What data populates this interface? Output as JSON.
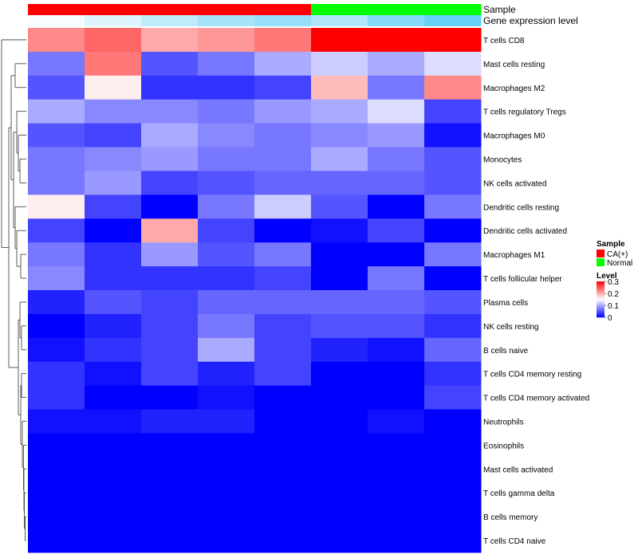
{
  "chart_data": {
    "type": "heatmap",
    "annotation_rows": [
      {
        "name": "Sample",
        "values": [
          "CA(+)",
          "CA(+)",
          "CA(+)",
          "CA(+)",
          "CA(+)",
          "Normal",
          "Normal",
          "Normal"
        ]
      },
      {
        "name": "Gene expression level",
        "values": [
          0.05,
          0.2,
          0.4,
          0.55,
          0.65,
          0.5,
          0.75,
          0.95
        ]
      }
    ],
    "rows": [
      "T cells CD8",
      "Mast cells resting",
      "Macrophages M2",
      "T cells regulatory  Tregs",
      "Macrophages M0",
      "Monocytes",
      "NK cells activated",
      "Dendritic cells resting",
      "Dendritic cells activated",
      "Macrophages M1",
      "T cells follicular helper",
      "Plasma cells",
      "NK cells resting",
      "B cells naive",
      "T cells CD4 memory resting",
      "T cells CD4 memory activated",
      "Neutrophils",
      "Eosinophils",
      "Mast cells activated",
      "T cells gamma delta",
      "B cells memory",
      "T cells CD4 naive"
    ],
    "values": [
      [
        0.22,
        0.24,
        0.2,
        0.21,
        0.23,
        0.3,
        0.3,
        0.3
      ],
      [
        0.07,
        0.23,
        0.05,
        0.07,
        0.1,
        0.12,
        0.1,
        0.13
      ],
      [
        0.05,
        0.16,
        0.03,
        0.03,
        0.04,
        0.19,
        0.07,
        0.22
      ],
      [
        0.1,
        0.08,
        0.08,
        0.07,
        0.09,
        0.1,
        0.13,
        0.04
      ],
      [
        0.05,
        0.04,
        0.1,
        0.08,
        0.07,
        0.08,
        0.09,
        0.01
      ],
      [
        0.07,
        0.08,
        0.09,
        0.07,
        0.07,
        0.1,
        0.07,
        0.05
      ],
      [
        0.07,
        0.09,
        0.04,
        0.05,
        0.06,
        0.06,
        0.06,
        0.05
      ],
      [
        0.16,
        0.04,
        0.0,
        0.07,
        0.12,
        0.05,
        0.0,
        0.07
      ],
      [
        0.04,
        0.0,
        0.2,
        0.04,
        0.0,
        0.01,
        0.04,
        0.0
      ],
      [
        0.07,
        0.03,
        0.09,
        0.05,
        0.07,
        0.0,
        0.0,
        0.07
      ],
      [
        0.08,
        0.03,
        0.03,
        0.03,
        0.04,
        0.0,
        0.07,
        0.0
      ],
      [
        0.02,
        0.05,
        0.04,
        0.06,
        0.06,
        0.06,
        0.06,
        0.05
      ],
      [
        0.0,
        0.02,
        0.04,
        0.07,
        0.04,
        0.05,
        0.05,
        0.03
      ],
      [
        0.01,
        0.03,
        0.04,
        0.1,
        0.04,
        0.02,
        0.01,
        0.06
      ],
      [
        0.03,
        0.01,
        0.04,
        0.02,
        0.04,
        0.0,
        0.0,
        0.03
      ],
      [
        0.03,
        0.0,
        0.0,
        0.01,
        0.0,
        0.0,
        0.0,
        0.04
      ],
      [
        0.01,
        0.01,
        0.02,
        0.02,
        0.0,
        0.0,
        0.01,
        0.0
      ],
      [
        0.0,
        0.0,
        0.0,
        0.0,
        0.0,
        0.0,
        0.0,
        0.0
      ],
      [
        0.0,
        0.0,
        0.0,
        0.0,
        0.0,
        0.0,
        0.0,
        0.0
      ],
      [
        0.0,
        0.0,
        0.0,
        0.0,
        0.0,
        0.0,
        0.0,
        0.0
      ],
      [
        0.0,
        0.0,
        0.0,
        0.0,
        0.0,
        0.0,
        0.0,
        0.0
      ],
      [
        0.0,
        0.0,
        0.0,
        0.0,
        0.0,
        0.0,
        0.0,
        0.0
      ]
    ],
    "color_scale": {
      "min": 0,
      "max": 0.3,
      "low_color": "#0000ff",
      "mid_color": "#ffffff",
      "high_color": "#ff0000",
      "mid_value": 0.15
    },
    "legend": {
      "sample_title": "Sample",
      "sample_entries": [
        {
          "label": "CA(+)",
          "color": "#ff0000"
        },
        {
          "label": "Normal",
          "color": "#00ff00"
        }
      ],
      "level_title": "Level",
      "level_ticks": [
        "0.3",
        "0.2",
        "0.1",
        "0"
      ],
      "level_tick_values": [
        0.3,
        0.2,
        0.1,
        0
      ],
      "placement": "right"
    },
    "expression_colors": {
      "low": "#ffffff",
      "high": "#5ecdf6"
    },
    "row_dendrogram": "left"
  }
}
